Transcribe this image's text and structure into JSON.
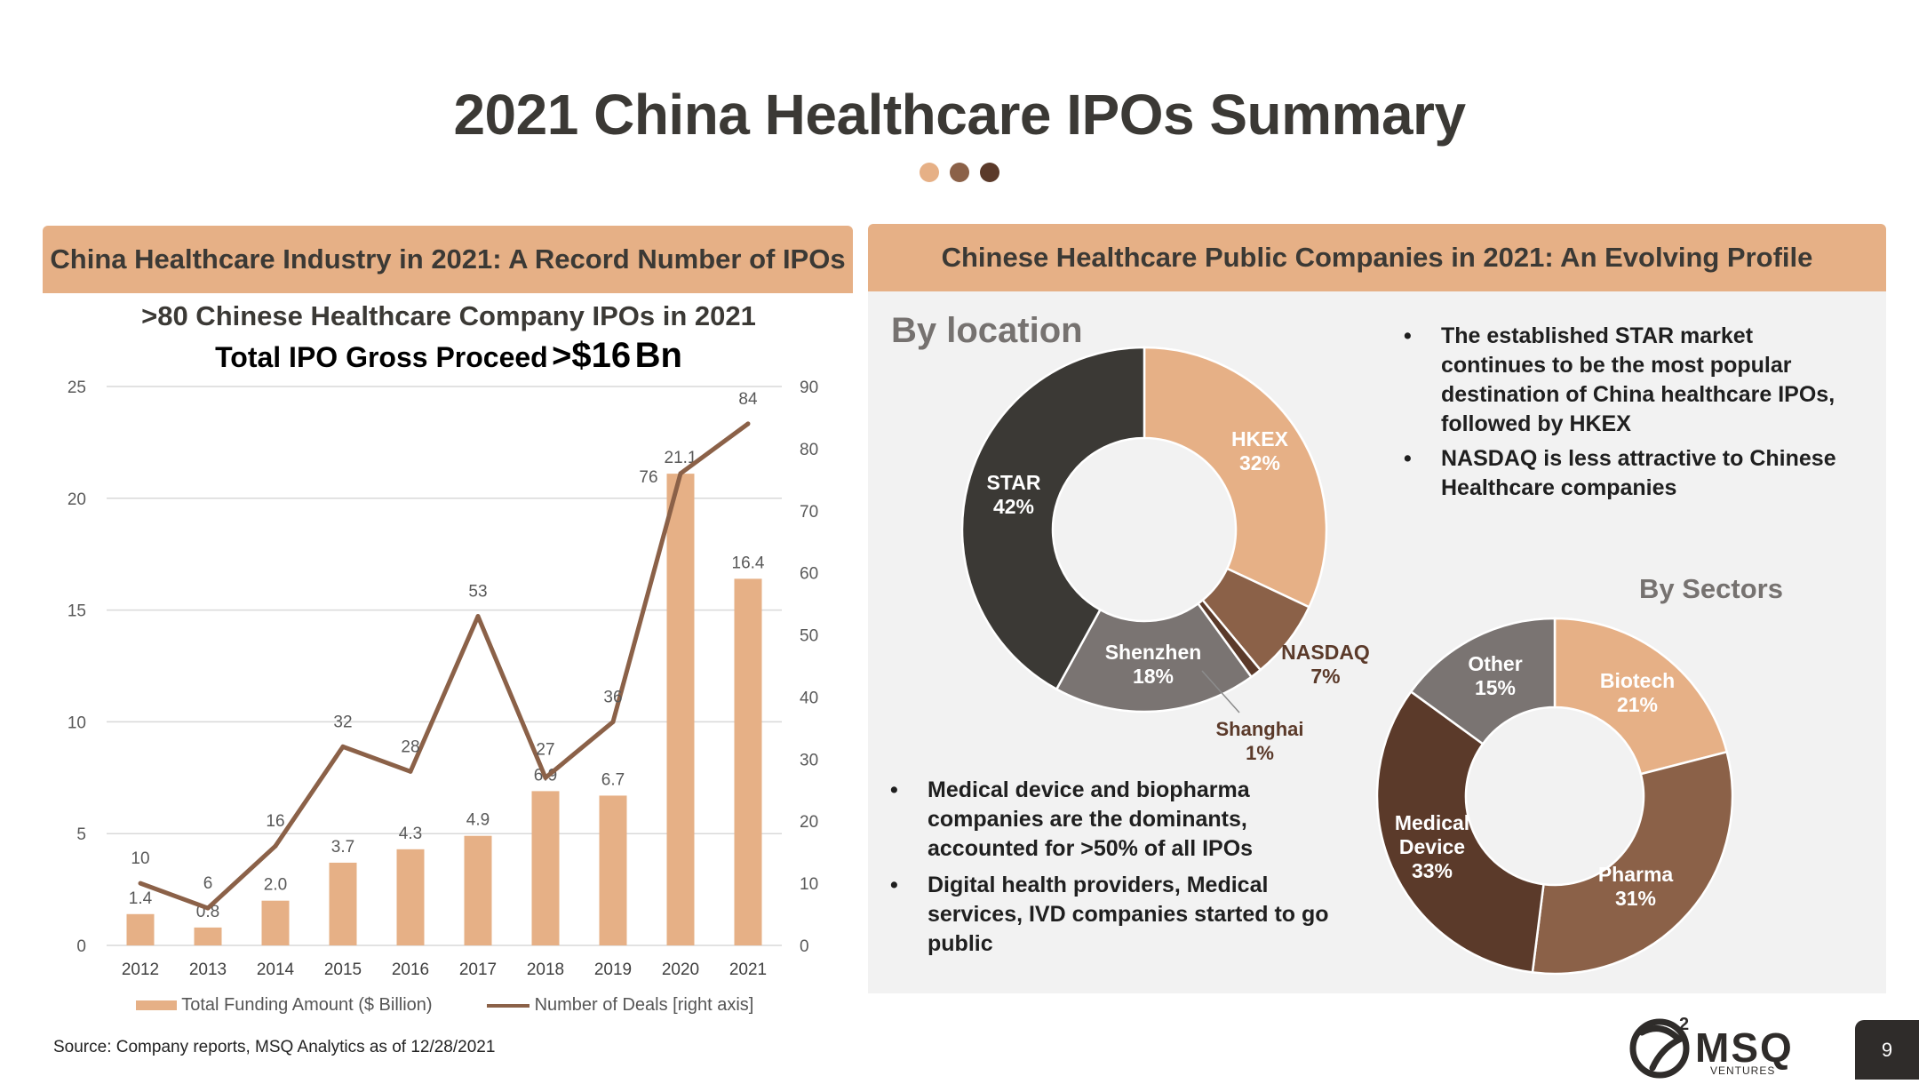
{
  "title": "2021 China Healthcare IPOs Summary",
  "dots_colors": [
    "#e6b086",
    "#8b6148",
    "#5b3a2a"
  ],
  "left_header": "China Healthcare Industry in 2021: A Record Number of IPOs",
  "right_header": "Chinese Healthcare Public Companies in 2021: An Evolving Profile",
  "chart_subtitle": ">80 Chinese Healthcare Company IPOs in 2021",
  "chart_subtitle2_prefix": "Total IPO Gross Proceed",
  "chart_subtitle2_gt": ">",
  "chart_subtitle2_amount": "$16",
  "chart_subtitle2_unit": "Bn",
  "by_location_label": "By location",
  "by_sectors_label": "By Sectors",
  "bullets_top": [
    "The established STAR market continues to be the most popular destination of China healthcare IPOs, followed by HKEX",
    "NASDAQ is less attractive to Chinese Healthcare companies"
  ],
  "bullets_bottom": [
    "Medical device and biopharma companies are the dominants, accounted for >50% of all IPOs",
    "Digital health providers, Medical services, IVD companies started to go public"
  ],
  "source": "Source: Company reports, MSQ Analytics as of 12/28/2021",
  "page_number": "9",
  "logo_text": "MSQ",
  "logo_sub": "VENTURES",
  "logo_mark": "2",
  "chart_data": [
    {
      "type": "bar+line",
      "categories": [
        "2012",
        "2013",
        "2014",
        "2015",
        "2016",
        "2017",
        "2018",
        "2019",
        "2020",
        "2021"
      ],
      "series": [
        {
          "name": "Total Funding Amount ($ Billion)",
          "type": "bar",
          "axis": "left",
          "values": [
            1.4,
            0.8,
            2.0,
            3.7,
            4.3,
            4.9,
            6.9,
            6.7,
            21.1,
            16.4
          ],
          "labels": [
            "1.4",
            "0.8",
            "2.0",
            "3.7",
            "4.3",
            "4.9",
            "6.9",
            "6.7",
            "21.1",
            "16.4"
          ],
          "color": "#e6b086"
        },
        {
          "name": "Number of Deals [right axis]",
          "type": "line",
          "axis": "right",
          "values": [
            10,
            6,
            16,
            32,
            28,
            53,
            27,
            36,
            76,
            84
          ],
          "labels": [
            "10",
            "6",
            "16",
            "32",
            "28",
            "53",
            "27",
            "36",
            "76",
            "84"
          ],
          "color": "#8b6148"
        }
      ],
      "y_left": {
        "min": 0,
        "max": 25,
        "ticks": [
          "0",
          "5",
          "10",
          "15",
          "20",
          "25"
        ]
      },
      "y_right": {
        "min": 0,
        "max": 90,
        "ticks": [
          "0",
          "10",
          "20",
          "30",
          "40",
          "50",
          "60",
          "70",
          "80",
          "90"
        ]
      },
      "grid": true,
      "legend": "bottom"
    },
    {
      "type": "pie",
      "donut": true,
      "slices": [
        {
          "name": "HKEX",
          "value": 32,
          "label": "32%",
          "color": "#e6b086"
        },
        {
          "name": "NASDAQ",
          "value": 7,
          "label": "7%",
          "color": "#8b6148"
        },
        {
          "name": "Shanghai",
          "value": 1,
          "label": "1%",
          "color": "#5b3a2a"
        },
        {
          "name": "Shenzhen",
          "value": 18,
          "label": "18%",
          "color": "#7a7472"
        },
        {
          "name": "STAR",
          "value": 42,
          "label": "42%",
          "color": "#3b3935"
        }
      ]
    },
    {
      "type": "pie",
      "donut": true,
      "slices": [
        {
          "name": "Biotech",
          "value": 21,
          "label": "21%",
          "color": "#e6b086"
        },
        {
          "name": "Pharma",
          "value": 31,
          "label": "31%",
          "color": "#8b6148"
        },
        {
          "name": "Medical Device",
          "value": 33,
          "label": "33%",
          "color": "#5b3a2a"
        },
        {
          "name": "Other",
          "value": 15,
          "label": "15%",
          "color": "#7a7472"
        }
      ]
    }
  ]
}
